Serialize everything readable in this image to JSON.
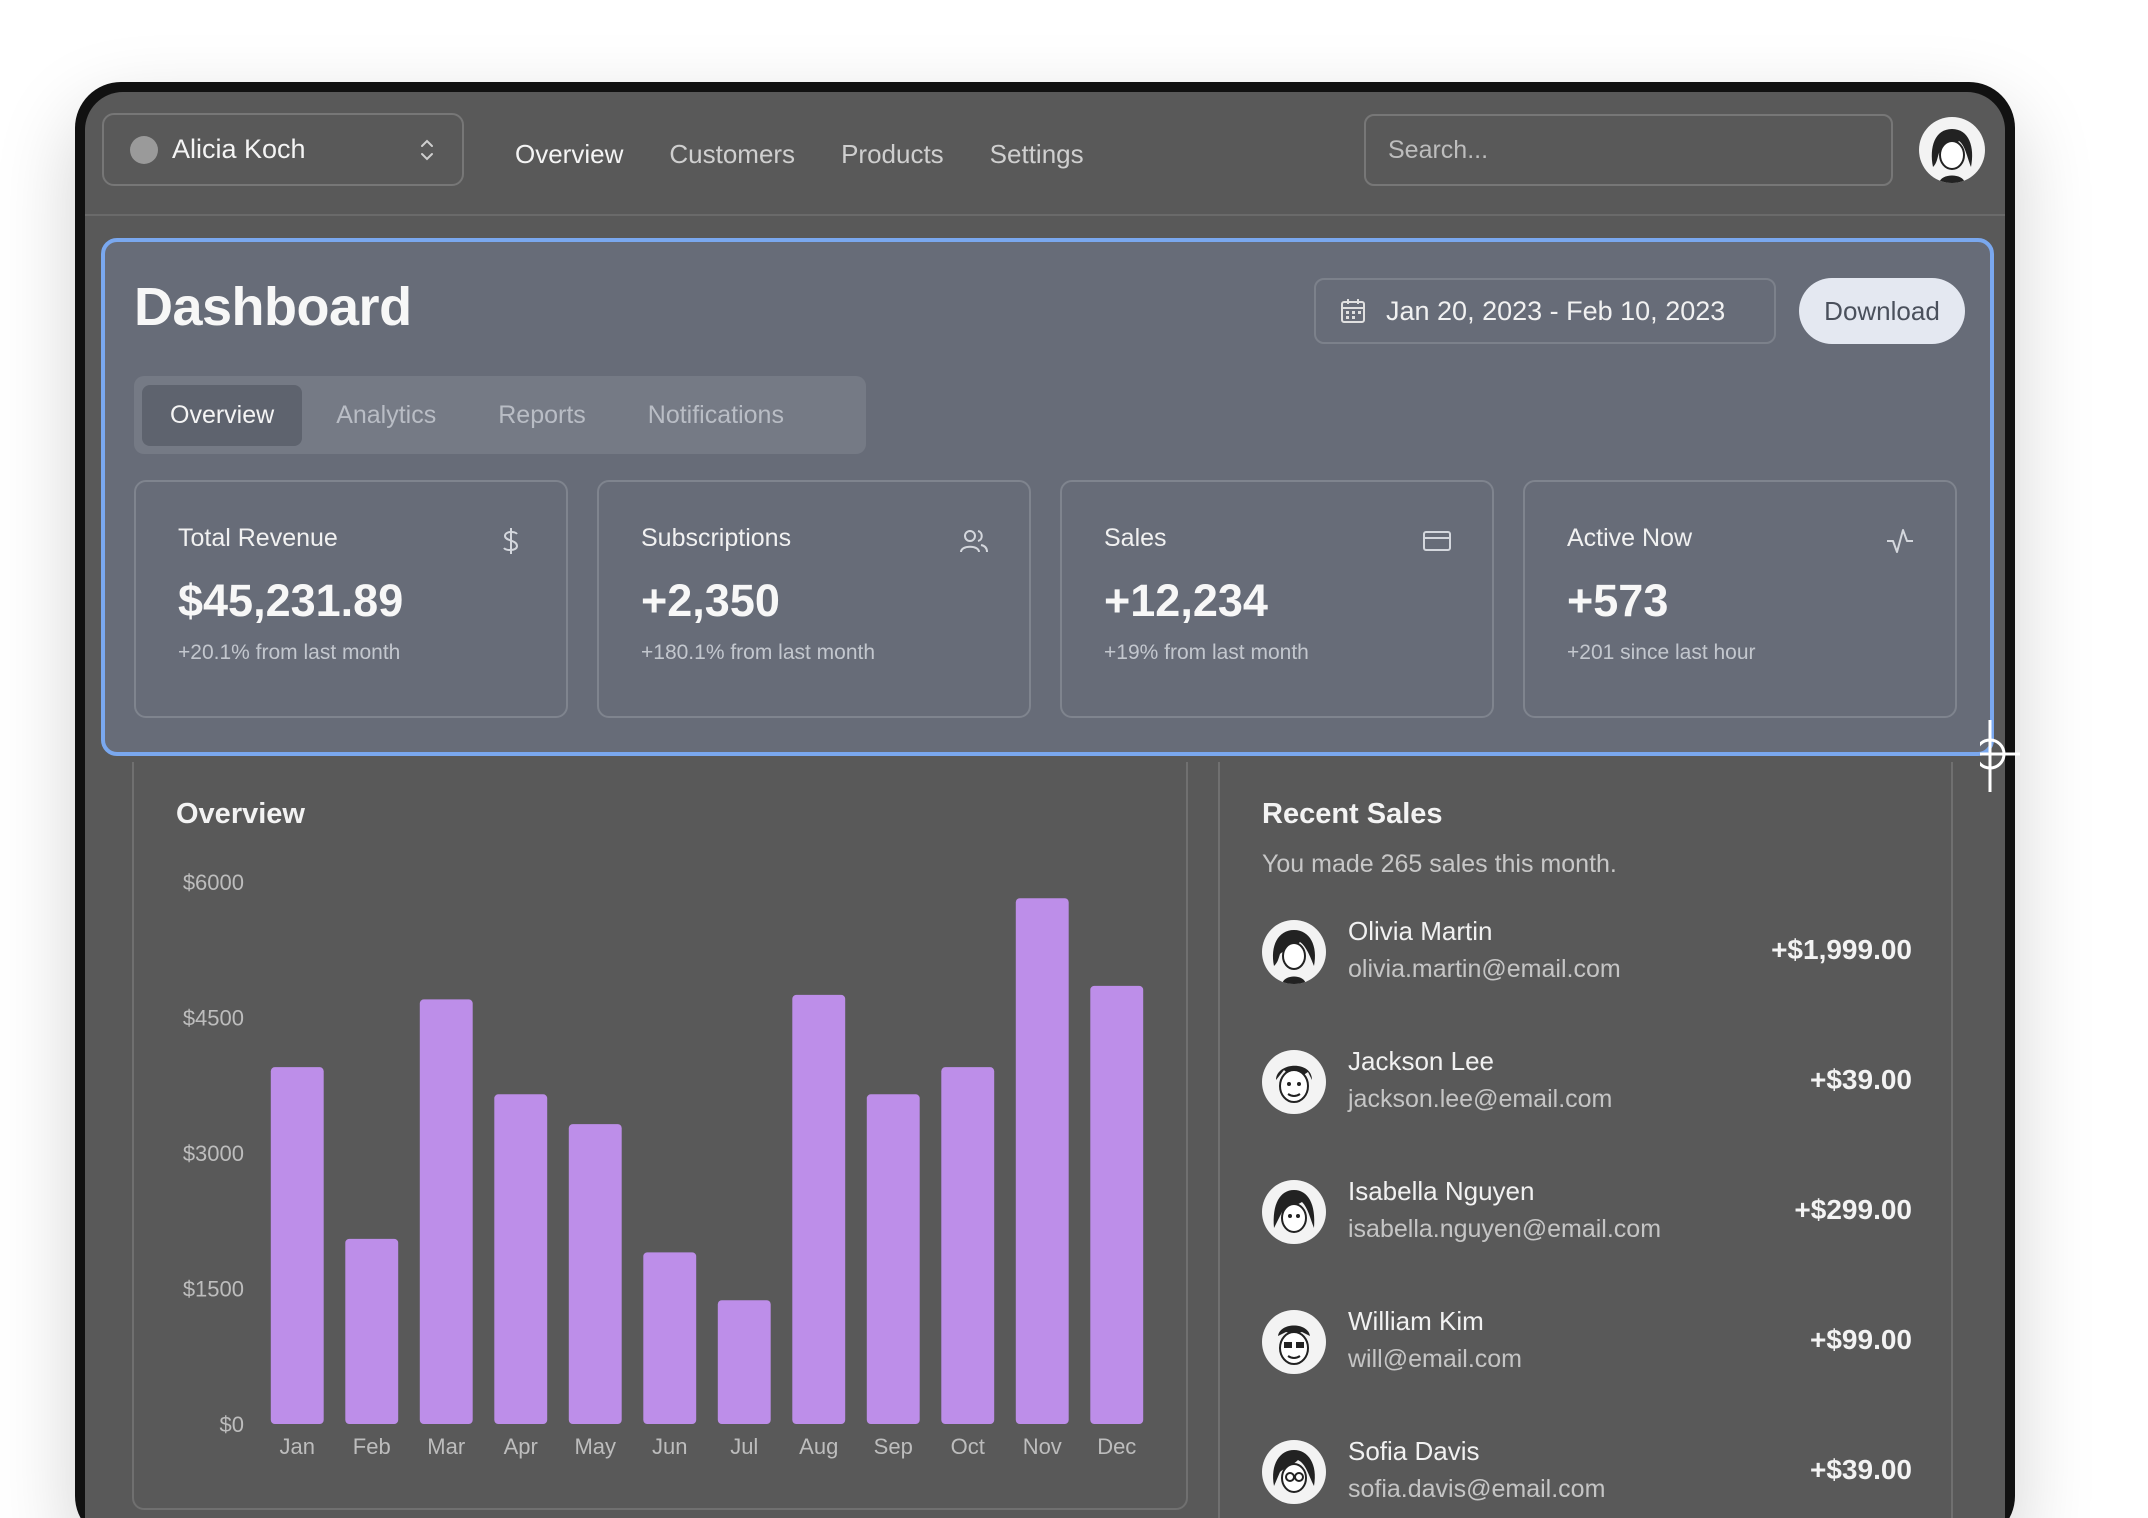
{
  "topbar": {
    "team_name": "Alicia Koch",
    "nav": [
      "Overview",
      "Customers",
      "Products",
      "Settings"
    ],
    "search_placeholder": "Search..."
  },
  "dashboard": {
    "title": "Dashboard",
    "date_range": "Jan 20, 2023 - Feb 10, 2023",
    "download_label": "Download",
    "tabs": [
      "Overview",
      "Analytics",
      "Reports",
      "Notifications"
    ],
    "stats": [
      {
        "label": "Total Revenue",
        "value": "$45,231.89",
        "sub": "+20.1% from last month",
        "icon": "dollar-icon"
      },
      {
        "label": "Subscriptions",
        "value": "+2,350",
        "sub": "+180.1% from last month",
        "icon": "users-icon"
      },
      {
        "label": "Sales",
        "value": "+12,234",
        "sub": "+19% from last month",
        "icon": "credit-card-icon"
      },
      {
        "label": "Active Now",
        "value": "+573",
        "sub": "+201 since last hour",
        "icon": "activity-icon"
      }
    ]
  },
  "overview": {
    "title": "Overview"
  },
  "chart_data": {
    "type": "bar",
    "title": "Overview",
    "categories": [
      "Jan",
      "Feb",
      "Mar",
      "Apr",
      "May",
      "Jun",
      "Jul",
      "Aug",
      "Sep",
      "Oct",
      "Nov",
      "Dec"
    ],
    "values": [
      3950,
      2050,
      4700,
      3650,
      3320,
      1900,
      1370,
      4750,
      3650,
      3950,
      5820,
      4850
    ],
    "ticks": [
      "$0",
      "$1500",
      "$3000",
      "$4500",
      "$6000"
    ],
    "tick_values": [
      0,
      1500,
      3000,
      4500,
      6000
    ],
    "ylim": [
      0,
      6000
    ],
    "bar_color": "#bd8ee9",
    "xlabel": "",
    "ylabel": ""
  },
  "recent_sales": {
    "title": "Recent Sales",
    "subtitle": "You made 265 sales this month.",
    "items": [
      {
        "name": "Olivia Martin",
        "email": "olivia.martin@email.com",
        "amount": "+$1,999.00"
      },
      {
        "name": "Jackson Lee",
        "email": "jackson.lee@email.com",
        "amount": "+$39.00"
      },
      {
        "name": "Isabella Nguyen",
        "email": "isabella.nguyen@email.com",
        "amount": "+$299.00"
      },
      {
        "name": "William Kim",
        "email": "will@email.com",
        "amount": "+$99.00"
      },
      {
        "name": "Sofia Davis",
        "email": "sofia.davis@email.com",
        "amount": "+$39.00"
      }
    ]
  },
  "colors": {
    "accent_selection": "#7aa8ef",
    "bar": "#bd8ee9"
  }
}
